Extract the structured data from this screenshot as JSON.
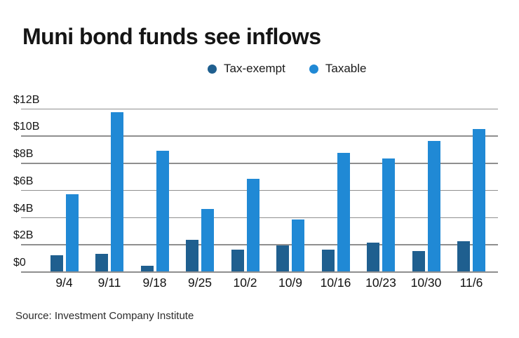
{
  "title": "Muni bond funds see inflows",
  "source": "Source: Investment Company Institute",
  "colors": {
    "tax_exempt": "#1f5f8f",
    "taxable": "#2089d5",
    "grid": "#8f8f8f",
    "text": "#151515"
  },
  "legend": {
    "items": [
      {
        "label": "Tax-exempt",
        "color": "#1f5f8f"
      },
      {
        "label": "Taxable",
        "color": "#2089d5"
      }
    ]
  },
  "chart_data": {
    "type": "bar",
    "title": "Muni bond funds see inflows",
    "categories": [
      "9/4",
      "9/11",
      "9/18",
      "9/25",
      "10/2",
      "10/9",
      "10/16",
      "10/23",
      "10/30",
      "11/6"
    ],
    "series": [
      {
        "name": "Tax-exempt",
        "color": "#1f5f8f",
        "values": [
          1.2,
          1.3,
          0.4,
          2.3,
          1.6,
          1.9,
          1.6,
          2.1,
          1.5,
          2.2
        ]
      },
      {
        "name": "Taxable",
        "color": "#2089d5",
        "values": [
          5.7,
          11.7,
          8.9,
          4.6,
          6.8,
          3.8,
          8.7,
          8.3,
          9.6,
          10.5
        ]
      }
    ],
    "unit": "billions USD",
    "ylim": [
      0,
      12
    ],
    "ytick_values": [
      12,
      10,
      8,
      6,
      4,
      2,
      0
    ],
    "ytick_labels": [
      "$12B",
      "$10B",
      "$8B",
      "$6B",
      "$4B",
      "$2B",
      "$0"
    ],
    "grid": true,
    "legend_position": "top",
    "xlabel": "",
    "ylabel": ""
  }
}
